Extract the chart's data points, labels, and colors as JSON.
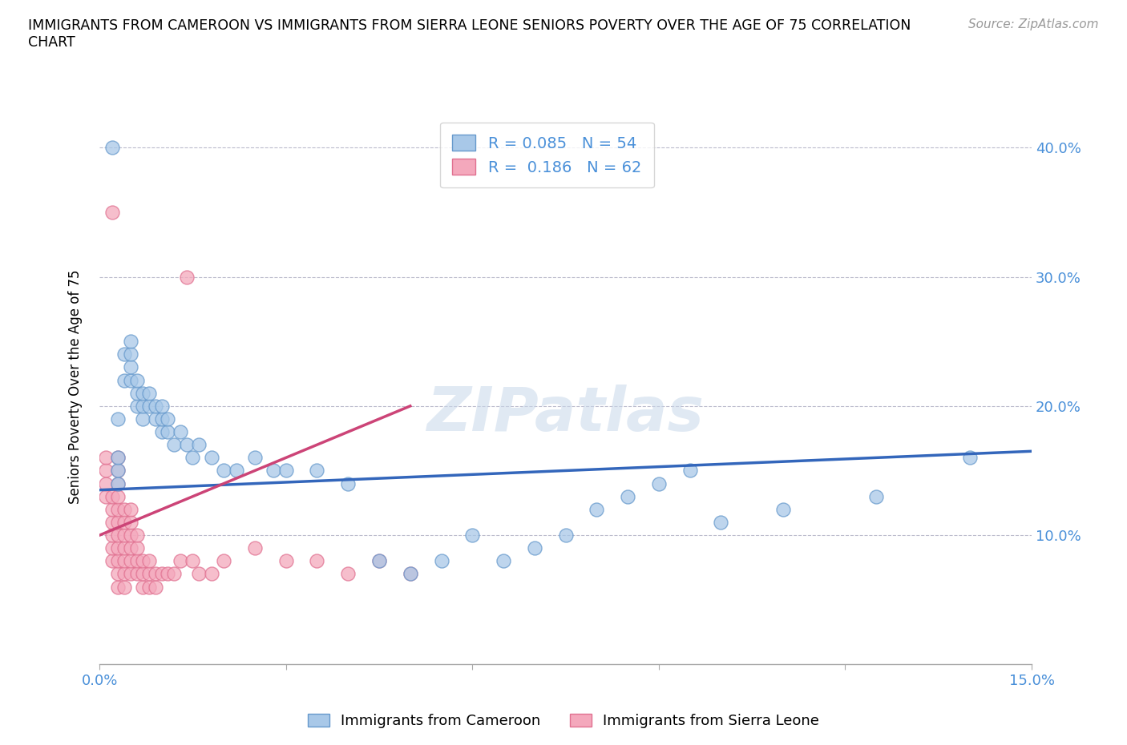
{
  "title": "IMMIGRANTS FROM CAMEROON VS IMMIGRANTS FROM SIERRA LEONE SENIORS POVERTY OVER THE AGE OF 75 CORRELATION\nCHART",
  "source": "Source: ZipAtlas.com",
  "ylabel": "Seniors Poverty Over the Age of 75",
  "x_label_bottom": "Immigrants from Cameroon",
  "x_label_bottom2": "Immigrants from Sierra Leone",
  "xlim": [
    0.0,
    0.15
  ],
  "ylim": [
    0.0,
    0.43
  ],
  "cameroon_color": "#a8c8e8",
  "sierra_leone_color": "#f4a8bc",
  "cameroon_edge_color": "#6699cc",
  "sierra_leone_edge_color": "#e07090",
  "trend_cameroon_color": "#3366bb",
  "trend_sierra_leone_color": "#cc4477",
  "R_cameroon": 0.085,
  "N_cameroon": 54,
  "R_sierra_leone": 0.186,
  "N_sierra_leone": 62,
  "watermark": "ZIPatlas",
  "cameroon_x": [
    0.002,
    0.003,
    0.003,
    0.003,
    0.003,
    0.004,
    0.004,
    0.005,
    0.005,
    0.005,
    0.005,
    0.006,
    0.006,
    0.006,
    0.007,
    0.007,
    0.007,
    0.008,
    0.008,
    0.009,
    0.009,
    0.01,
    0.01,
    0.01,
    0.011,
    0.011,
    0.012,
    0.013,
    0.014,
    0.015,
    0.016,
    0.018,
    0.02,
    0.022,
    0.025,
    0.028,
    0.03,
    0.035,
    0.04,
    0.045,
    0.05,
    0.055,
    0.06,
    0.065,
    0.07,
    0.075,
    0.08,
    0.085,
    0.09,
    0.095,
    0.1,
    0.11,
    0.125,
    0.14
  ],
  "cameroon_y": [
    0.4,
    0.14,
    0.15,
    0.16,
    0.19,
    0.22,
    0.24,
    0.22,
    0.23,
    0.24,
    0.25,
    0.2,
    0.21,
    0.22,
    0.19,
    0.2,
    0.21,
    0.2,
    0.21,
    0.19,
    0.2,
    0.18,
    0.19,
    0.2,
    0.18,
    0.19,
    0.17,
    0.18,
    0.17,
    0.16,
    0.17,
    0.16,
    0.15,
    0.15,
    0.16,
    0.15,
    0.15,
    0.15,
    0.14,
    0.08,
    0.07,
    0.08,
    0.1,
    0.08,
    0.09,
    0.1,
    0.12,
    0.13,
    0.14,
    0.15,
    0.11,
    0.12,
    0.13,
    0.16
  ],
  "sierra_leone_x": [
    0.001,
    0.001,
    0.001,
    0.001,
    0.002,
    0.002,
    0.002,
    0.002,
    0.002,
    0.002,
    0.002,
    0.003,
    0.003,
    0.003,
    0.003,
    0.003,
    0.003,
    0.003,
    0.003,
    0.003,
    0.003,
    0.003,
    0.004,
    0.004,
    0.004,
    0.004,
    0.004,
    0.004,
    0.004,
    0.005,
    0.005,
    0.005,
    0.005,
    0.005,
    0.005,
    0.006,
    0.006,
    0.006,
    0.006,
    0.007,
    0.007,
    0.007,
    0.008,
    0.008,
    0.008,
    0.009,
    0.009,
    0.01,
    0.011,
    0.012,
    0.013,
    0.014,
    0.015,
    0.016,
    0.018,
    0.02,
    0.025,
    0.03,
    0.035,
    0.04,
    0.045,
    0.05
  ],
  "sierra_leone_y": [
    0.13,
    0.14,
    0.15,
    0.16,
    0.08,
    0.09,
    0.1,
    0.11,
    0.12,
    0.13,
    0.35,
    0.06,
    0.07,
    0.08,
    0.09,
    0.1,
    0.11,
    0.12,
    0.13,
    0.14,
    0.15,
    0.16,
    0.06,
    0.07,
    0.08,
    0.09,
    0.1,
    0.11,
    0.12,
    0.07,
    0.08,
    0.09,
    0.1,
    0.11,
    0.12,
    0.07,
    0.08,
    0.09,
    0.1,
    0.06,
    0.07,
    0.08,
    0.06,
    0.07,
    0.08,
    0.06,
    0.07,
    0.07,
    0.07,
    0.07,
    0.08,
    0.3,
    0.08,
    0.07,
    0.07,
    0.08,
    0.09,
    0.08,
    0.08,
    0.07,
    0.08,
    0.07
  ],
  "trend_cam_x0": 0.0,
  "trend_cam_x1": 0.15,
  "trend_cam_y0": 0.135,
  "trend_cam_y1": 0.165,
  "trend_sl_x0": 0.0,
  "trend_sl_x1": 0.05,
  "trend_sl_y0": 0.1,
  "trend_sl_y1": 0.2
}
